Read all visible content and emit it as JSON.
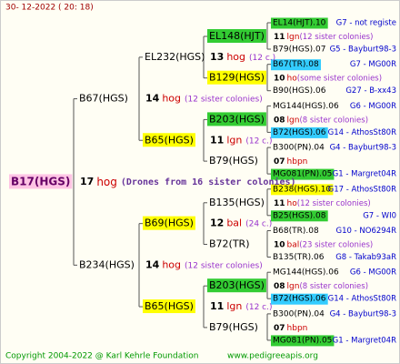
{
  "date": "30- 12-2022 ( 20: 18)",
  "footer": {
    "copyright": "Copyright 2004-2022 @ Karl Kehrle Foundation",
    "site": "www.pedigreeapis.org"
  },
  "tree": {
    "label": "B17(HGS)",
    "highlight": "pink",
    "mating": {
      "count": "17",
      "race": "hog",
      "note": "(Drones from 16 sister colonies)"
    },
    "parents": [
      {
        "label": "B67(HGS)",
        "mating": {
          "count": "14",
          "race": "hog",
          "note": "(12 sister colonies)"
        },
        "parents": [
          {
            "label": "EL232(HGS)",
            "mating": {
              "count": "13",
              "race": "hog",
              "note": "(12 c.)"
            },
            "parents": [
              {
                "label": "EL148(HJT)",
                "highlight": "green",
                "mating": {
                  "count": "11",
                  "race": "lgn",
                  "note": "(12 sister colonies)"
                },
                "parents": [
                  {
                    "label": "EL14(HJT).10",
                    "highlight": "green",
                    "info": "G7 - not registe"
                  },
                  {
                    "label": "B79(HGS).07",
                    "info": "G5 - Bayburt98-3"
                  }
                ]
              },
              {
                "label": "B129(HGS)",
                "highlight": "yellow",
                "mating": {
                  "count": "10",
                  "race": "ho",
                  "note": "(some sister colonies)"
                },
                "parents": [
                  {
                    "label": "B67(TR).08",
                    "highlight": "cyan",
                    "info": "G7 - MG00R"
                  },
                  {
                    "label": "B90(HGS).06",
                    "info": "G27 - B-xx43"
                  }
                ]
              }
            ]
          },
          {
            "label": "B65(HGS)",
            "highlight": "yellow",
            "mating": {
              "count": "11",
              "race": "lgn",
              "note": "(12 c.)"
            },
            "parents": [
              {
                "label": "B203(HGS)",
                "highlight": "green",
                "mating": {
                  "count": "08",
                  "race": "lgn",
                  "note": "(8 sister colonies)"
                },
                "parents": [
                  {
                    "label": "MG144(HGS).06",
                    "info": "G6 - MG00R"
                  },
                  {
                    "label": "B72(HGS).06",
                    "highlight": "cyan",
                    "info": "G14 - AthosSt80R"
                  }
                ]
              },
              {
                "label": "B79(HGS)",
                "mating": {
                  "count": "07",
                  "race": "hbpn",
                  "note": ""
                },
                "parents": [
                  {
                    "label": "B300(PN).04",
                    "info": "G4 - Bayburt98-3"
                  },
                  {
                    "label": "MG081(PN).05",
                    "highlight": "green",
                    "info": "G1 - Margret04R"
                  }
                ]
              }
            ]
          }
        ]
      },
      {
        "label": "B234(HGS)",
        "mating": {
          "count": "14",
          "race": "hog",
          "note": "(12 sister colonies)"
        },
        "parents": [
          {
            "label": "B69(HGS)",
            "highlight": "yellow",
            "mating": {
              "count": "12",
              "race": "bal",
              "note": "(24 c.)"
            },
            "parents": [
              {
                "label": "B135(HGS)",
                "mating": {
                  "count": "11",
                  "race": "ho",
                  "note": "(12 sister colonies)"
                },
                "parents": [
                  {
                    "label": "B238(HGS).10",
                    "highlight": "yellow",
                    "info": "G17 - AthosSt80R"
                  },
                  {
                    "label": "B25(HGS).08",
                    "highlight": "green",
                    "info": "G7 - WI0"
                  }
                ]
              },
              {
                "label": "B72(TR)",
                "mating": {
                  "count": "10",
                  "race": "bal",
                  "note": "(23 sister colonies)"
                },
                "parents": [
                  {
                    "label": "B68(TR).08",
                    "info": "G10 - NO6294R"
                  },
                  {
                    "label": "B135(TR).06",
                    "info": "G8 - Takab93aR"
                  }
                ]
              }
            ]
          },
          {
            "label": "B65(HGS)",
            "highlight": "yellow",
            "mating": {
              "count": "11",
              "race": "lgn",
              "note": "(12 c.)"
            },
            "parents": [
              {
                "label": "B203(HGS)",
                "highlight": "green",
                "mating": {
                  "count": "08",
                  "race": "lgn",
                  "note": "(8 sister colonies)"
                },
                "parents": [
                  {
                    "label": "MG144(HGS).06",
                    "info": "G6 - MG00R"
                  },
                  {
                    "label": "B72(HGS).06",
                    "highlight": "cyan",
                    "info": "G14 - AthosSt80R"
                  }
                ]
              },
              {
                "label": "B79(HGS)",
                "mating": {
                  "count": "07",
                  "race": "hbpn",
                  "note": ""
                },
                "parents": [
                  {
                    "label": "B300(PN).04",
                    "info": "G4 - Bayburt98-3"
                  },
                  {
                    "label": "MG081(PN).05",
                    "highlight": "green",
                    "info": "G1 - Margret04R"
                  }
                ]
              }
            ]
          }
        ]
      }
    ]
  }
}
